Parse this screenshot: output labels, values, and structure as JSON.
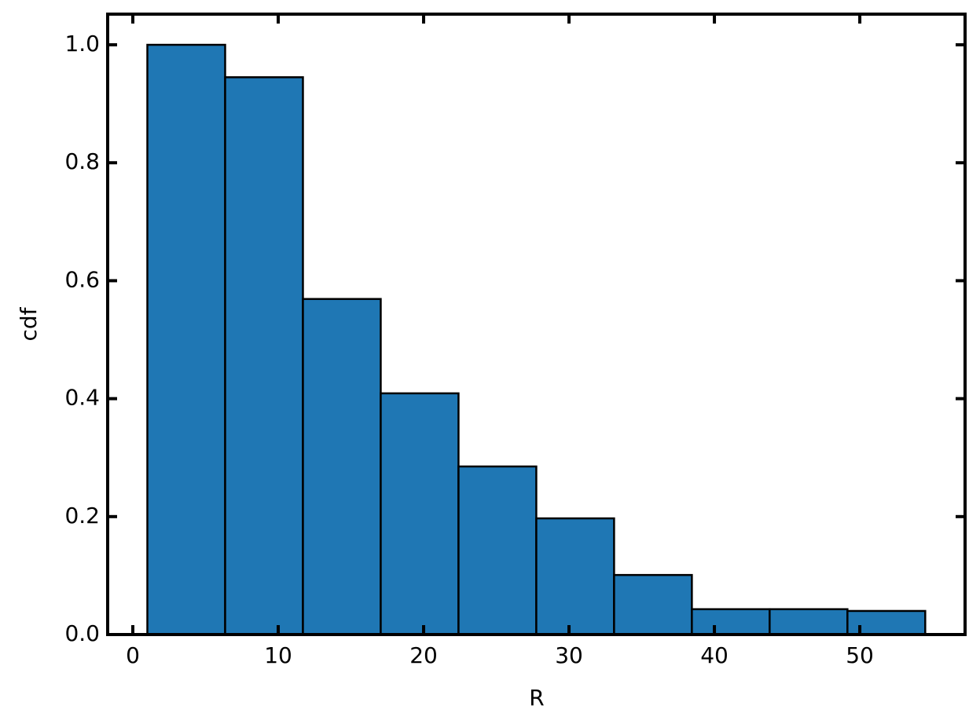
{
  "chart_data": {
    "type": "histogram",
    "bins": [
      1.0,
      6.35,
      11.7,
      17.05,
      22.4,
      27.75,
      33.1,
      38.45,
      43.8,
      49.15,
      54.5
    ],
    "values": [
      1.0,
      0.945,
      0.569,
      0.409,
      0.285,
      0.197,
      0.101,
      0.043,
      0.043,
      0.04
    ],
    "color": "#1f77b4",
    "edgecolor": "#000000",
    "xlabel": "R",
    "ylabel": "cdf",
    "xlim": [
      -1.73,
      57.24
    ],
    "xticks": [
      0,
      10,
      20,
      30,
      40,
      50
    ],
    "ylim": [
      0,
      1.052
    ],
    "yticks": [
      {
        "value": 0,
        "label": "0.0"
      },
      {
        "value": 0.2,
        "label": "0.2"
      },
      {
        "value": 0.4,
        "label": "0.4"
      },
      {
        "value": 0.6,
        "label": "0.6"
      },
      {
        "value": 0.8,
        "label": "0.8"
      },
      {
        "value": 1.0,
        "label": "1.0"
      }
    ]
  }
}
